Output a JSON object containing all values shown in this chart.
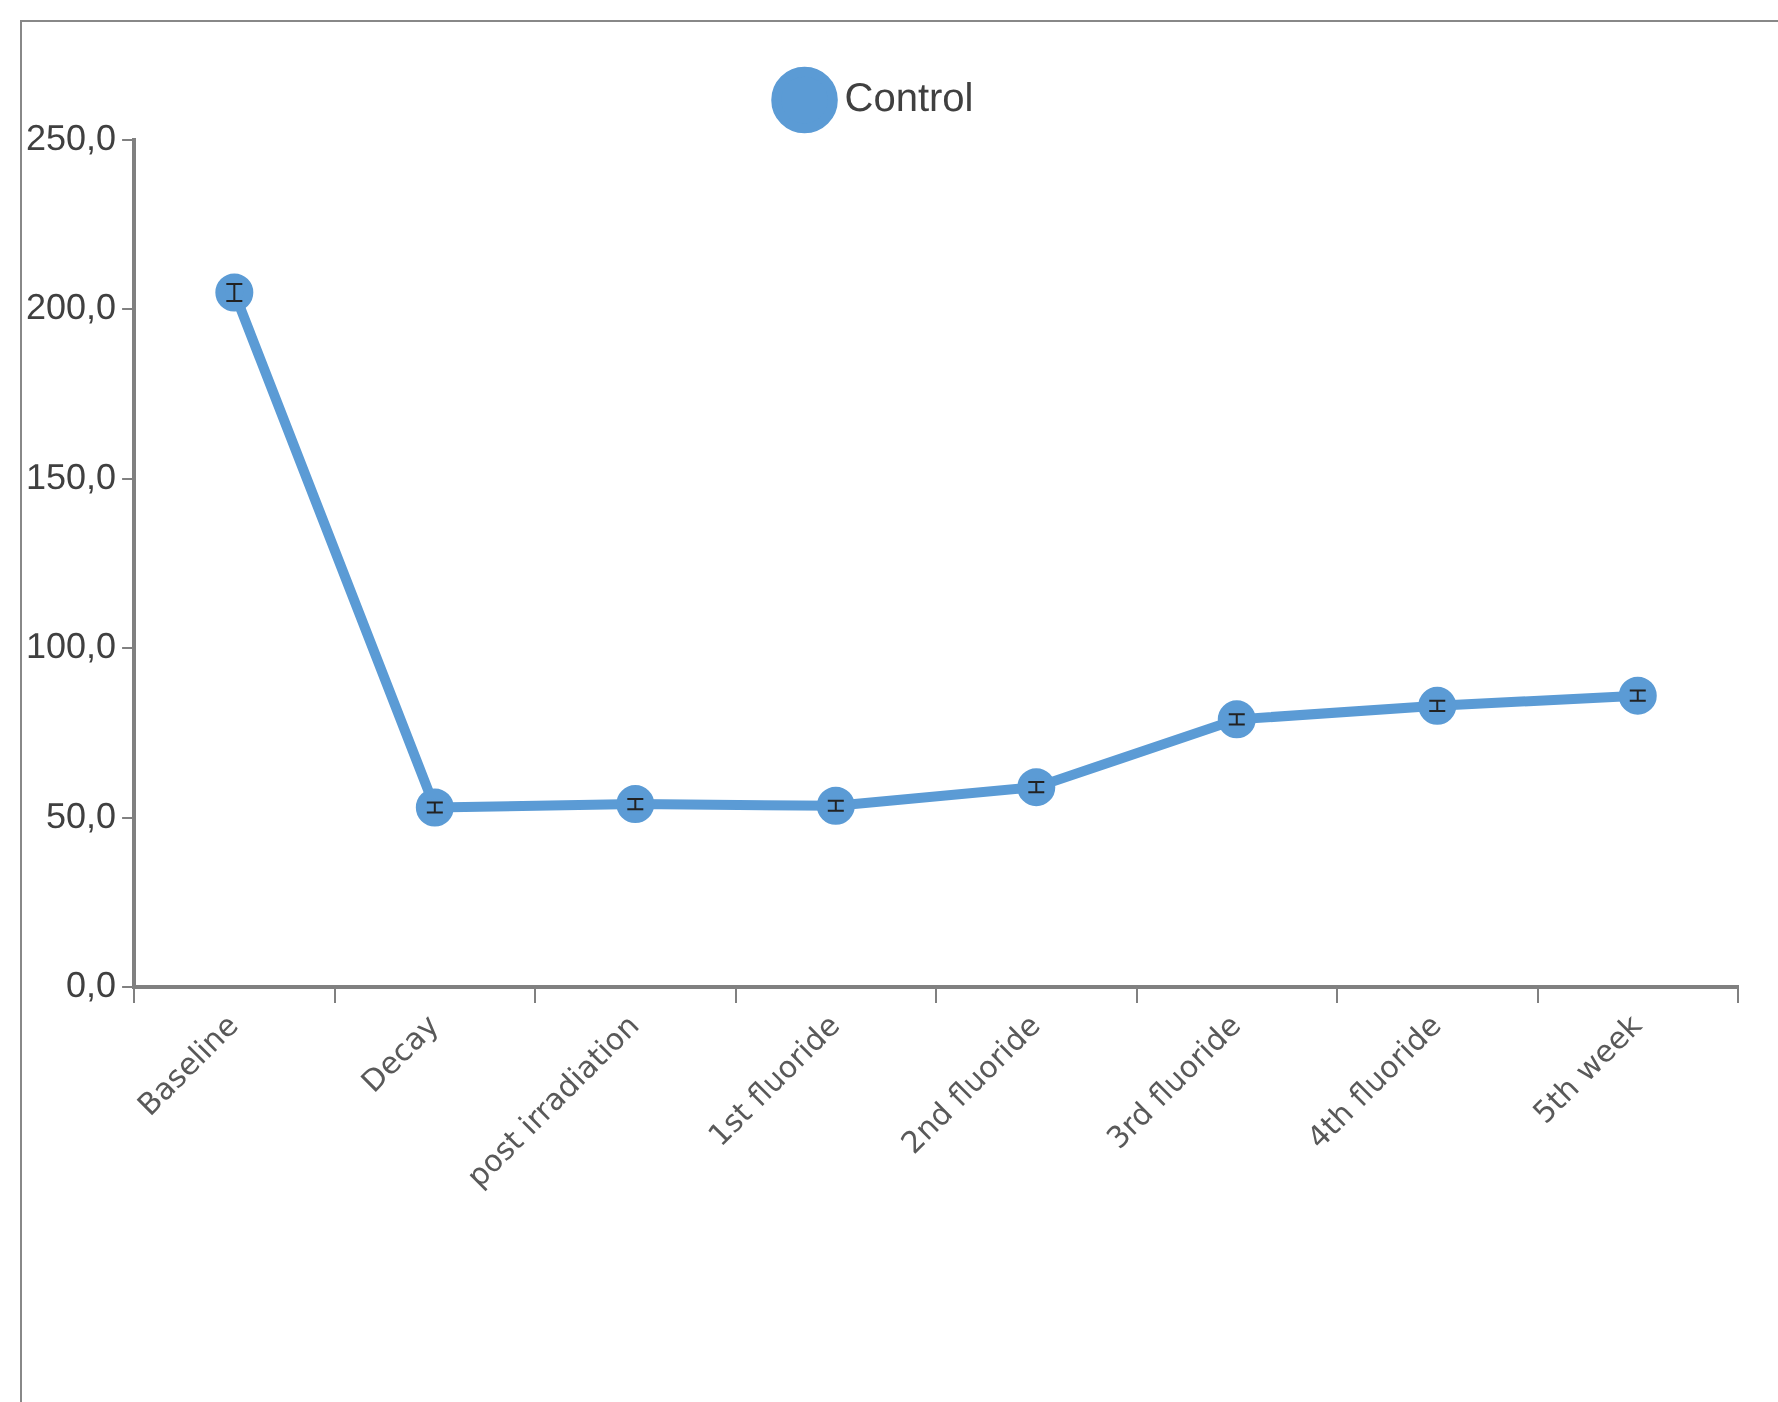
{
  "chart_data": {
    "type": "line",
    "categories": [
      "Baseline",
      "Decay",
      "post irradiation",
      "1st fluoride",
      "2nd fluoride",
      "3rd fluoride",
      "4th fluoride",
      "5th week"
    ],
    "series": [
      {
        "name": "Control",
        "color": "#5b9bd5",
        "values": [
          205,
          53,
          54,
          53.5,
          59,
          79,
          83,
          86
        ],
        "errors": [
          2.5,
          1.5,
          1.5,
          1.5,
          1.5,
          1.5,
          1.5,
          1.5
        ]
      }
    ],
    "ylim": [
      0,
      250
    ],
    "yticks": [
      {
        "value": 0,
        "label": "0,0"
      },
      {
        "value": 50,
        "label": "50,0"
      },
      {
        "value": 100,
        "label": "100,0"
      },
      {
        "value": 150,
        "label": "150,0"
      },
      {
        "value": 200,
        "label": "200,0"
      },
      {
        "value": 250,
        "label": "250,0"
      }
    ],
    "grid": false,
    "legend": "top",
    "marker": "circle",
    "line_style": "solid"
  }
}
